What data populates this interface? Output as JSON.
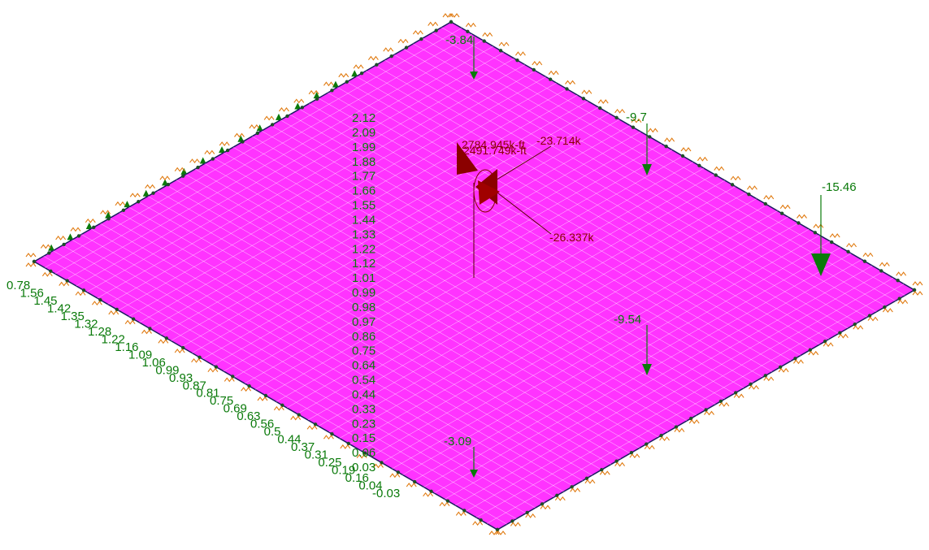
{
  "colors": {
    "plate_fill": "#ff33ff",
    "mesh_line": "#ffffff",
    "edge": "#1a1a60",
    "spring": "#e07a10",
    "load": "#0a7a0a",
    "reaction": "#8b0000"
  },
  "point_loads": [
    {
      "label": "-3.84",
      "icon": "arrow-down-icon"
    },
    {
      "label": "-9.7",
      "icon": "arrow-down-icon"
    },
    {
      "label": "-15.46",
      "icon": "arrow-down-large-icon"
    },
    {
      "label": "-9.54",
      "icon": "arrow-down-icon"
    },
    {
      "label": "-3.09",
      "icon": "arrow-down-icon"
    }
  ],
  "edge_labels": [
    "0.78",
    "1.56",
    "1.45",
    "1.42",
    "1.35",
    "1.32",
    "1.28",
    "1.22",
    "1.16",
    "1.09",
    "1.06",
    "0.99",
    "0.93",
    "0.87",
    "0.81",
    "0.75",
    "0.69",
    "0.63",
    "0.56",
    "0.5",
    "0.44",
    "0.37",
    "0.31",
    "0.25",
    "0.19",
    "0.16",
    "0.04",
    "-0.03"
  ],
  "vertical_labels": [
    "0.03",
    "0.06",
    "0.15",
    "0.23",
    "0.33",
    "0.44",
    "0.54",
    "0.64",
    "0.75",
    "0.86",
    "0.97",
    "0.98",
    "0.99",
    "1.01",
    "1.12",
    "1.22",
    "1.33",
    "1.44",
    "1.55",
    "1.66",
    "1.77",
    "1.88",
    "1.99",
    "2.09",
    "2.12"
  ],
  "reactions": {
    "moment_a": "2784.945k-ft",
    "moment_b": "2491.749k-ft",
    "force_x": "-23.714k",
    "force_y": "-26.337k"
  }
}
